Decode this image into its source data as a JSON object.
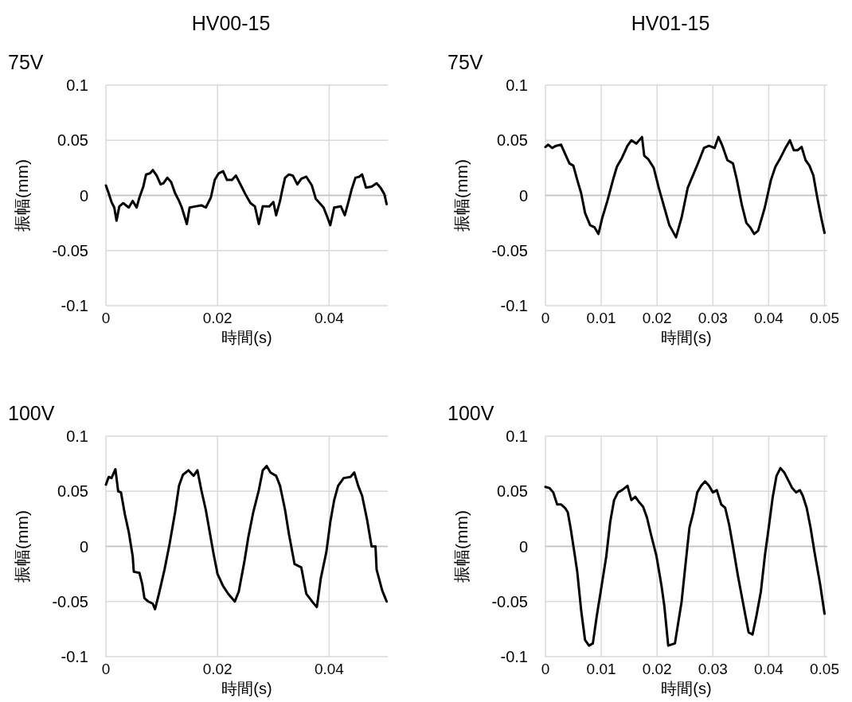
{
  "chart_data": [
    {
      "type": "line",
      "title": "HV00-15",
      "subtitle": "75V",
      "xlabel": "時間(s)",
      "ylabel": "振幅(mm)",
      "color": "#000000",
      "grid": true,
      "xlim": [
        0,
        0.0505
      ],
      "ylim": [
        -0.1,
        0.1
      ],
      "xticks": [
        0,
        0.02,
        0.04
      ],
      "yticks": [
        -0.1,
        -0.05,
        0,
        0.05,
        0.1
      ],
      "x": [
        0,
        0.0005,
        0.001,
        0.0015,
        0.0019,
        0.0024,
        0.0031,
        0.0041,
        0.0048,
        0.0055,
        0.006,
        0.0067,
        0.0072,
        0.0079,
        0.0084,
        0.0091,
        0.0098,
        0.0103,
        0.011,
        0.0117,
        0.0124,
        0.0131,
        0.0136,
        0.0145,
        0.015,
        0.016,
        0.0171,
        0.0179,
        0.0183,
        0.0188,
        0.0195,
        0.0202,
        0.021,
        0.0217,
        0.0226,
        0.0233,
        0.024,
        0.025,
        0.0259,
        0.0267,
        0.0274,
        0.0281,
        0.0293,
        0.03,
        0.0305,
        0.0312,
        0.0316,
        0.0321,
        0.0328,
        0.0335,
        0.0343,
        0.035,
        0.0359,
        0.0369,
        0.0376,
        0.0383,
        0.039,
        0.0397,
        0.0402,
        0.0409,
        0.0421,
        0.0428,
        0.0435,
        0.044,
        0.0447,
        0.0454,
        0.0459,
        0.0466,
        0.0476,
        0.0485,
        0.0492,
        0.0499,
        0.0503
      ],
      "values": [
        0.009,
        0.002,
        -0.006,
        -0.011,
        -0.023,
        -0.01,
        -0.007,
        -0.011,
        -0.005,
        -0.011,
        -0.002,
        0.008,
        0.019,
        0.02,
        0.023,
        0.018,
        0.01,
        0.011,
        0.016,
        0.012,
        0.002,
        -0.005,
        -0.011,
        -0.026,
        -0.011,
        -0.01,
        -0.009,
        -0.011,
        -0.007,
        -0.002,
        0.014,
        0.02,
        0.022,
        0.014,
        0.014,
        0.018,
        0.011,
        0.001,
        -0.007,
        -0.01,
        -0.026,
        -0.01,
        -0.01,
        -0.006,
        -0.018,
        -0.005,
        0.005,
        0.016,
        0.019,
        0.018,
        0.01,
        0.015,
        0.017,
        0.009,
        -0.003,
        -0.007,
        -0.011,
        -0.02,
        -0.027,
        -0.011,
        -0.01,
        -0.018,
        -0.005,
        0.005,
        0.016,
        0.017,
        0.019,
        0.007,
        0.008,
        0.011,
        0.007,
        0.001,
        -0.008
      ]
    },
    {
      "type": "line",
      "title": "HV01-15",
      "subtitle": "75V",
      "xlabel": "時間(s)",
      "ylabel": "振幅(mm)",
      "color": "#000000",
      "grid": true,
      "xlim": [
        0,
        0.0505
      ],
      "ylim": [
        -0.1,
        0.1
      ],
      "xticks": [
        0,
        0.01,
        0.02,
        0.03,
        0.04,
        0.05
      ],
      "yticks": [
        -0.1,
        -0.05,
        0,
        0.05,
        0.1
      ],
      "x": [
        0,
        0.0005,
        0.0012,
        0.0019,
        0.0028,
        0.0035,
        0.0043,
        0.005,
        0.0057,
        0.0064,
        0.0071,
        0.008,
        0.0088,
        0.0095,
        0.0102,
        0.0111,
        0.0121,
        0.0128,
        0.0137,
        0.0147,
        0.0154,
        0.0163,
        0.0173,
        0.0177,
        0.0184,
        0.0194,
        0.0203,
        0.0213,
        0.0222,
        0.0234,
        0.0244,
        0.0255,
        0.0265,
        0.0274,
        0.0284,
        0.0293,
        0.0303,
        0.031,
        0.0317,
        0.0326,
        0.0336,
        0.0343,
        0.0352,
        0.036,
        0.0367,
        0.0374,
        0.0381,
        0.0393,
        0.0404,
        0.0412,
        0.0421,
        0.043,
        0.0438,
        0.0445,
        0.0452,
        0.0459,
        0.0466,
        0.0473,
        0.048,
        0.0487,
        0.0494,
        0.05
      ],
      "values": [
        0.044,
        0.046,
        0.043,
        0.045,
        0.046,
        0.038,
        0.029,
        0.027,
        0.014,
        0.002,
        -0.016,
        -0.027,
        -0.029,
        -0.035,
        -0.02,
        -0.005,
        0.014,
        0.026,
        0.034,
        0.045,
        0.05,
        0.047,
        0.053,
        0.036,
        0.033,
        0.025,
        0.007,
        -0.011,
        -0.027,
        -0.038,
        -0.02,
        0.007,
        0.019,
        0.03,
        0.043,
        0.045,
        0.043,
        0.053,
        0.045,
        0.032,
        0.029,
        0.014,
        -0.009,
        -0.025,
        -0.029,
        -0.035,
        -0.032,
        -0.011,
        0.014,
        0.026,
        0.034,
        0.043,
        0.05,
        0.041,
        0.041,
        0.044,
        0.032,
        0.027,
        0.018,
        -0.002,
        -0.02,
        -0.034
      ]
    },
    {
      "type": "line",
      "subtitle": "100V",
      "xlabel": "時間(s)",
      "ylabel": "振幅(mm)",
      "color": "#000000",
      "grid": true,
      "xlim": [
        0,
        0.0505
      ],
      "ylim": [
        -0.1,
        0.1
      ],
      "xticks": [
        0,
        0.02,
        0.04
      ],
      "yticks": [
        -0.1,
        -0.05,
        0,
        0.05,
        0.1
      ],
      "x": [
        0,
        0.0005,
        0.001,
        0.0017,
        0.0022,
        0.0027,
        0.0034,
        0.0041,
        0.0048,
        0.005,
        0.006,
        0.0065,
        0.0069,
        0.0076,
        0.0084,
        0.0088,
        0.0095,
        0.0105,
        0.0114,
        0.0124,
        0.0131,
        0.0138,
        0.0148,
        0.0157,
        0.0164,
        0.0171,
        0.0179,
        0.0186,
        0.0193,
        0.02,
        0.021,
        0.0219,
        0.0231,
        0.0238,
        0.0248,
        0.0255,
        0.0264,
        0.0274,
        0.0281,
        0.0288,
        0.0295,
        0.0305,
        0.0312,
        0.0321,
        0.0328,
        0.0338,
        0.035,
        0.0359,
        0.0371,
        0.0378,
        0.0385,
        0.0395,
        0.0402,
        0.0409,
        0.0416,
        0.0426,
        0.0438,
        0.0445,
        0.0452,
        0.0459,
        0.0468,
        0.0476,
        0.0483,
        0.0485,
        0.0495,
        0.0503
      ],
      "values": [
        0.056,
        0.063,
        0.062,
        0.07,
        0.05,
        0.049,
        0.029,
        0.013,
        -0.009,
        -0.023,
        -0.024,
        -0.034,
        -0.047,
        -0.05,
        -0.052,
        -0.057,
        -0.043,
        -0.021,
        0.002,
        0.031,
        0.055,
        0.065,
        0.069,
        0.064,
        0.069,
        0.051,
        0.033,
        0.013,
        -0.007,
        -0.025,
        -0.036,
        -0.043,
        -0.05,
        -0.041,
        -0.014,
        0.008,
        0.031,
        0.051,
        0.069,
        0.073,
        0.067,
        0.064,
        0.055,
        0.033,
        0.011,
        -0.016,
        -0.019,
        -0.043,
        -0.051,
        -0.055,
        -0.029,
        -0.005,
        0.022,
        0.042,
        0.055,
        0.062,
        0.063,
        0.067,
        0.055,
        0.046,
        0.024,
        0,
        0,
        -0.021,
        -0.04,
        -0.05
      ]
    },
    {
      "type": "line",
      "subtitle": "100V",
      "xlabel": "時間(s)",
      "ylabel": "振幅(mm)",
      "color": "#000000",
      "grid": true,
      "xlim": [
        0,
        0.0505
      ],
      "ylim": [
        -0.1,
        0.1
      ],
      "xticks": [
        0,
        0.01,
        0.02,
        0.03,
        0.04,
        0.05
      ],
      "yticks": [
        -0.1,
        -0.05,
        0,
        0.05,
        0.1
      ],
      "x": [
        0,
        0.0007,
        0.0014,
        0.0021,
        0.0028,
        0.0035,
        0.004,
        0.0045,
        0.0052,
        0.0057,
        0.0064,
        0.0071,
        0.0078,
        0.0085,
        0.0092,
        0.0099,
        0.0109,
        0.0116,
        0.0123,
        0.013,
        0.0137,
        0.0147,
        0.0154,
        0.0161,
        0.0168,
        0.0175,
        0.0182,
        0.0189,
        0.0199,
        0.0208,
        0.0213,
        0.022,
        0.0232,
        0.0244,
        0.0245,
        0.0251,
        0.0258,
        0.0265,
        0.0272,
        0.0279,
        0.0286,
        0.0293,
        0.03,
        0.0307,
        0.0315,
        0.0322,
        0.0329,
        0.0336,
        0.0345,
        0.0355,
        0.0364,
        0.0371,
        0.0378,
        0.0386,
        0.0393,
        0.04,
        0.0407,
        0.0414,
        0.0421,
        0.0428,
        0.0435,
        0.0442,
        0.0449,
        0.0456,
        0.0461,
        0.0468,
        0.0475,
        0.0482,
        0.0492,
        0.05
      ],
      "values": [
        0.054,
        0.053,
        0.049,
        0.038,
        0.038,
        0.035,
        0.031,
        0.017,
        -0.006,
        -0.023,
        -0.058,
        -0.085,
        -0.09,
        -0.088,
        -0.063,
        -0.041,
        -0.009,
        0.022,
        0.042,
        0.049,
        0.051,
        0.055,
        0.042,
        0.045,
        0.04,
        0.036,
        0.026,
        0.011,
        -0.009,
        -0.036,
        -0.054,
        -0.09,
        -0.088,
        -0.05,
        -0.045,
        -0.016,
        0.017,
        0.031,
        0.049,
        0.055,
        0.059,
        0.055,
        0.049,
        0.051,
        0.038,
        0.035,
        0.02,
        0,
        -0.027,
        -0.054,
        -0.078,
        -0.08,
        -0.063,
        -0.041,
        -0.009,
        0.017,
        0.044,
        0.064,
        0.071,
        0.067,
        0.06,
        0.053,
        0.049,
        0.051,
        0.046,
        0.035,
        0.017,
        -0.005,
        -0.034,
        -0.061
      ]
    }
  ]
}
